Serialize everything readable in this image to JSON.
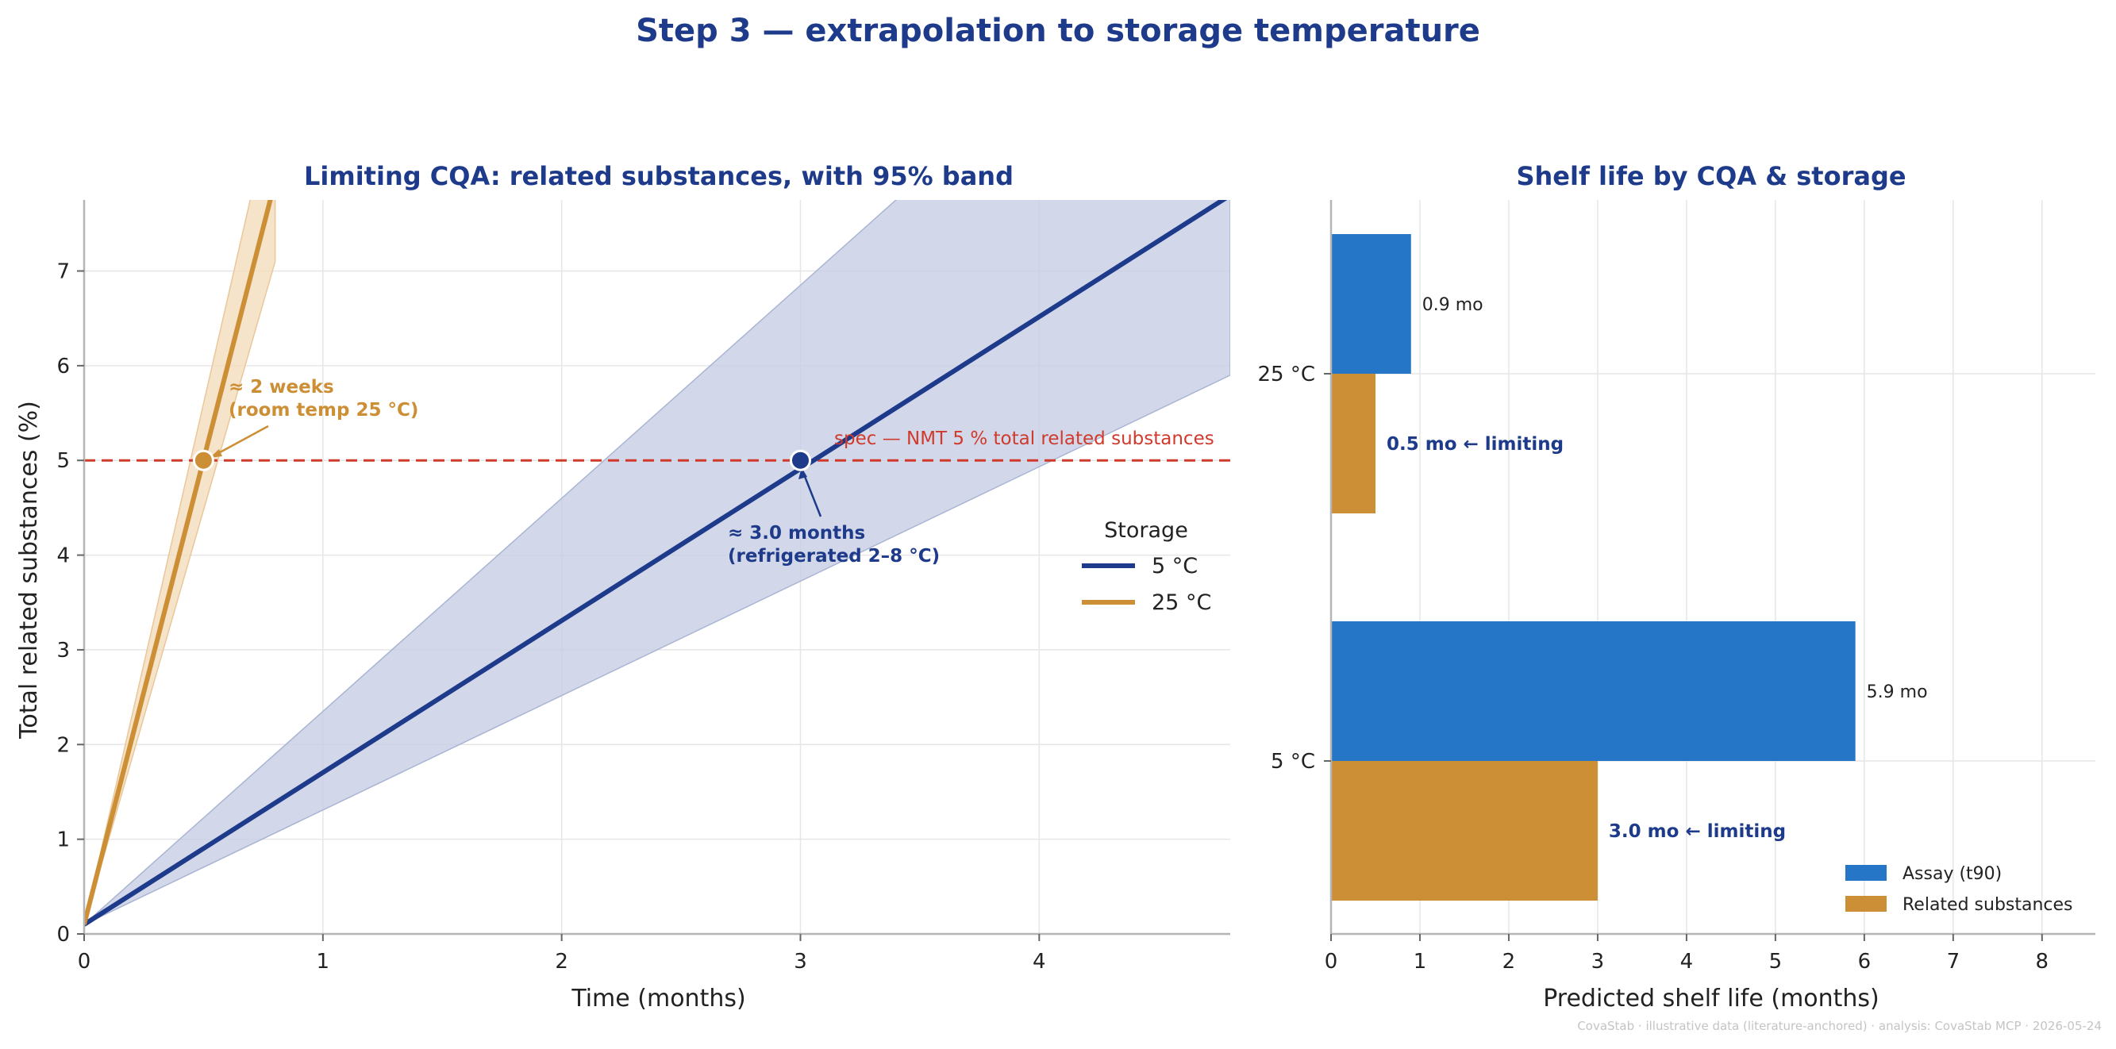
{
  "figure": {
    "suptitle": "Step 3 — extrapolation to storage temperature",
    "footer": "CovaStab · illustrative data (literature-anchored) · analysis: CovaStab MCP · 2026-05-24"
  },
  "colors": {
    "title": "#1e3a8a",
    "navy": "#1e3a8a",
    "gold": "#cd8f35",
    "spec": "#d03a2c",
    "assay": "#2576c7",
    "related": "#cd8f35",
    "band_navy": "#c7cee3",
    "band_gold": "#f2dcbd"
  },
  "chart_data": [
    {
      "type": "line",
      "title": "Limiting CQA: related substances, with 95% band",
      "xlabel": "Time (months)",
      "ylabel": "Total related substances (%)",
      "xlim": [
        0,
        4.8
      ],
      "ylim": [
        0,
        7.75
      ],
      "xticks": [
        "0",
        "1",
        "2",
        "3",
        "4"
      ],
      "yticks": [
        "0",
        "1",
        "2",
        "3",
        "4",
        "5",
        "6",
        "7"
      ],
      "grid": true,
      "series": [
        {
          "name": "5 °C",
          "x": [
            0,
            4.8
          ],
          "y": [
            0.1,
            7.8
          ],
          "band_lower": [
            0.1,
            5.9
          ],
          "band_upper": [
            0.1,
            10.9
          ],
          "crossing": {
            "x": 3.0,
            "y": 5.0
          }
        },
        {
          "name": "25 °C",
          "x": [
            0,
            0.8
          ],
          "y": [
            0.1,
            7.95
          ],
          "band_lower": [
            0.1,
            7.1
          ],
          "band_upper": [
            0.1,
            8.9
          ],
          "crossing": {
            "x": 0.5,
            "y": 5.0
          }
        }
      ],
      "spec_line": {
        "y": 5,
        "label": "spec — NMT 5 % total related substances"
      },
      "annotations": [
        {
          "line1": "≈ 2 weeks",
          "line2": "(room temp 25 °C)"
        },
        {
          "line1": "≈ 3.0 months",
          "line2": "(refrigerated 2–8 °C)"
        }
      ],
      "legend": {
        "title": "Storage",
        "entries": [
          "5 °C",
          "25 °C"
        ],
        "placement": "center-right"
      }
    },
    {
      "type": "bar",
      "orientation": "horizontal",
      "title": "Shelf life by CQA & storage",
      "xlabel": "Predicted shelf life (months)",
      "xlim": [
        0,
        8.6
      ],
      "xticks": [
        "0",
        "1",
        "2",
        "3",
        "4",
        "5",
        "6",
        "7",
        "8"
      ],
      "categories": [
        "25 °C",
        "5 °C"
      ],
      "series": [
        {
          "name": "Assay (t90)",
          "values": [
            0.9,
            5.9
          ],
          "labels": [
            "0.9 mo",
            "5.9 mo"
          ]
        },
        {
          "name": "Related substances",
          "values": [
            0.5,
            3.0
          ],
          "labels": [
            "0.5 mo  ← limiting",
            "3.0 mo  ← limiting"
          ]
        }
      ],
      "grid": true,
      "legend": {
        "entries": [
          "Assay (t90)",
          "Related substances"
        ],
        "placement": "lower-right"
      }
    }
  ]
}
